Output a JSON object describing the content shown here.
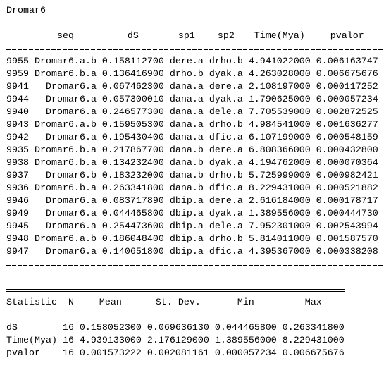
{
  "title": "Dromar6",
  "table1": {
    "headers": [
      "seq",
      "dS",
      "sp1",
      "sp2",
      "Time(Mya)",
      "pvalor"
    ],
    "rows": [
      [
        "9955",
        "Dromar6.a.b",
        "0.158112700",
        "dere.a",
        "drho.b",
        "4.941022000",
        "0.006163747"
      ],
      [
        "9959",
        "Dromar6.b.a",
        "0.136416900",
        "drho.b",
        "dyak.a",
        "4.263028000",
        "0.006675676"
      ],
      [
        "9941",
        "Dromar6.a",
        "0.067462300",
        "dana.a",
        "dere.a",
        "2.108197000",
        "0.000117252"
      ],
      [
        "9944",
        "Dromar6.a",
        "0.057300010",
        "dana.a",
        "dyak.a",
        "1.790625000",
        "0.000057234"
      ],
      [
        "9940",
        "Dromar6.a",
        "0.246577300",
        "dana.a",
        "dele.a",
        "7.705539000",
        "0.002872525"
      ],
      [
        "9943",
        "Dromar6.a.b",
        "0.159505300",
        "dana.a",
        "drho.b",
        "4.984541000",
        "0.001636277"
      ],
      [
        "9942",
        "Dromar6.a",
        "0.195430400",
        "dana.a",
        "dfic.a",
        "6.107199000",
        "0.000548159"
      ],
      [
        "9935",
        "Dromar6.b.a",
        "0.217867700",
        "dana.b",
        "dere.a",
        "6.808366000",
        "0.000432800"
      ],
      [
        "9938",
        "Dromar6.b.a",
        "0.134232400",
        "dana.b",
        "dyak.a",
        "4.194762000",
        "0.000070364"
      ],
      [
        "9937",
        "Dromar6.b",
        "0.183232000",
        "dana.b",
        "drho.b",
        "5.725999000",
        "0.000982421"
      ],
      [
        "9936",
        "Dromar6.b.a",
        "0.263341800",
        "dana.b",
        "dfic.a",
        "8.229431000",
        "0.000521882"
      ],
      [
        "9946",
        "Dromar6.a",
        "0.083717890",
        "dbip.a",
        "dere.a",
        "2.616184000",
        "0.000178717"
      ],
      [
        "9949",
        "Dromar6.a",
        "0.044465800",
        "dbip.a",
        "dyak.a",
        "1.389556000",
        "0.000444730"
      ],
      [
        "9945",
        "Dromar6.a",
        "0.254473600",
        "dbip.a",
        "dele.a",
        "7.952301000",
        "0.002543994"
      ],
      [
        "9948",
        "Dromar6.a.b",
        "0.186048400",
        "dbip.a",
        "drho.b",
        "5.814011000",
        "0.001587570"
      ],
      [
        "9947",
        "Dromar6.a",
        "0.140651800",
        "dbip.a",
        "dfic.a",
        "4.395367000",
        "0.000338208"
      ]
    ]
  },
  "table2": {
    "headers": [
      "Statistic",
      "N",
      "Mean",
      "St. Dev.",
      "Min",
      "Max"
    ],
    "rows": [
      [
        "dS",
        "16",
        "0.158052300",
        "0.069636130",
        "0.044465800",
        "0.263341800"
      ],
      [
        "Time(Mya)",
        "16",
        "4.939133000",
        "2.176129000",
        "1.389556000",
        "8.229431000"
      ],
      [
        "pvalor",
        "16",
        "0.001573222",
        "0.002081161",
        "0.000057234",
        "0.006675676"
      ]
    ]
  }
}
